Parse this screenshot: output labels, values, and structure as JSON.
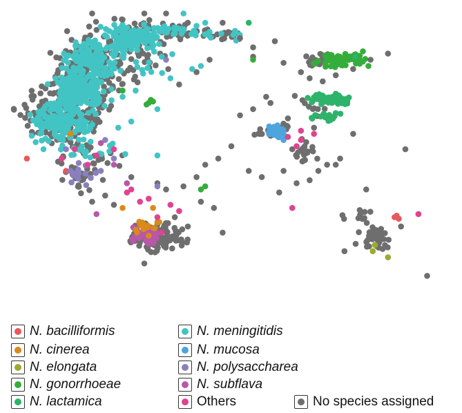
{
  "chart_data": {
    "type": "scatter",
    "title": "",
    "xlabel": "",
    "ylabel": "",
    "grid": false,
    "legend_placement": "bottom",
    "x_range": [
      0,
      100
    ],
    "y_range": [
      0,
      100
    ],
    "colors": {
      "N. bacilliformis": "#e8585c",
      "N. cinerea": "#d98a1c",
      "N. elongata": "#9aab2e",
      "N. gonorrhoeae": "#35ad3b",
      "N. lactamica": "#2fb36a",
      "N. meningitidis": "#43c4c4",
      "N. mucosa": "#4ea4dc",
      "N. polysaccharea": "#8a7fc0",
      "N. subflava": "#b957a8",
      "Others": "#e04391",
      "No species assigned": "#6e6e6e"
    },
    "clusters": [
      {
        "series": "N. meningitidis",
        "cx": 27,
        "cy": 91,
        "rx": 4,
        "ry": 2.8,
        "n": 150
      },
      {
        "series": "N. meningitidis",
        "cx": 18,
        "cy": 84,
        "rx": 4.3,
        "ry": 3.8,
        "n": 170
      },
      {
        "series": "N. meningitidis",
        "cx": 15,
        "cy": 74,
        "rx": 4.2,
        "ry": 3.8,
        "n": 170
      },
      {
        "series": "N. meningitidis",
        "cx": 11,
        "cy": 64,
        "rx": 4.5,
        "ry": 4,
        "n": 170
      },
      {
        "series": "No species assigned",
        "cx": 27,
        "cy": 91,
        "rx": 6,
        "ry": 4,
        "n": 90
      },
      {
        "series": "No species assigned",
        "cx": 18,
        "cy": 84,
        "rx": 6,
        "ry": 5.5,
        "n": 110
      },
      {
        "series": "No species assigned",
        "cx": 15,
        "cy": 74,
        "rx": 6,
        "ry": 5.5,
        "n": 110
      },
      {
        "series": "No species assigned",
        "cx": 11,
        "cy": 64,
        "rx": 6.5,
        "ry": 5.5,
        "n": 120
      },
      {
        "series": "No species assigned",
        "cx": 38,
        "cy": 93,
        "rx": 4,
        "ry": 1.5,
        "n": 28
      },
      {
        "series": "N. meningitidis",
        "cx": 37,
        "cy": 93,
        "rx": 4,
        "ry": 1.6,
        "n": 24
      },
      {
        "series": "No species assigned",
        "cx": 48,
        "cy": 92,
        "rx": 4,
        "ry": 1.2,
        "n": 16
      },
      {
        "series": "N. meningitidis",
        "cx": 47,
        "cy": 92,
        "rx": 4,
        "ry": 1.2,
        "n": 10
      },
      {
        "series": "N. meningitidis",
        "cx": 31,
        "cy": 82,
        "rx": 5,
        "ry": 5,
        "n": 12
      },
      {
        "series": "No species assigned",
        "cx": 31,
        "cy": 82,
        "rx": 5,
        "ry": 5,
        "n": 12
      },
      {
        "series": "N. meningitidis",
        "cx": 17,
        "cy": 55,
        "rx": 6,
        "ry": 3,
        "n": 22
      },
      {
        "series": "No species assigned",
        "cx": 17,
        "cy": 53,
        "rx": 6,
        "ry": 3,
        "n": 22
      },
      {
        "series": "No species assigned",
        "cx": 16,
        "cy": 46,
        "rx": 3.5,
        "ry": 4,
        "n": 22
      },
      {
        "series": "N. polysaccharea",
        "cx": 16,
        "cy": 47,
        "rx": 2.5,
        "ry": 3,
        "n": 12
      },
      {
        "series": "N. gonorrhoeae",
        "cx": 75,
        "cy": 84,
        "rx": 4,
        "ry": 1.6,
        "n": 70
      },
      {
        "series": "No species assigned",
        "cx": 70.5,
        "cy": 83.5,
        "rx": 2.5,
        "ry": 1.6,
        "n": 24
      },
      {
        "series": "N. lactamica",
        "cx": 73,
        "cy": 71,
        "rx": 3.5,
        "ry": 1.4,
        "n": 55
      },
      {
        "series": "N. lactamica",
        "cx": 72,
        "cy": 66,
        "rx": 2.8,
        "ry": 1.3,
        "n": 16
      },
      {
        "series": "No species assigned",
        "cx": 69,
        "cy": 69,
        "rx": 2.5,
        "ry": 2.8,
        "n": 14
      },
      {
        "series": "N. mucosa",
        "cx": 60.5,
        "cy": 61,
        "rx": 1.4,
        "ry": 1.5,
        "n": 34
      },
      {
        "series": "No species assigned",
        "cx": 59.5,
        "cy": 61,
        "rx": 2.5,
        "ry": 1.5,
        "n": 24
      },
      {
        "series": "No species assigned",
        "cx": 67,
        "cy": 53,
        "rx": 2.5,
        "ry": 3,
        "n": 20
      },
      {
        "series": "No species assigned",
        "cx": 33,
        "cy": 27,
        "rx": 4,
        "ry": 3,
        "n": 130
      },
      {
        "series": "N. subflava",
        "cx": 30,
        "cy": 27,
        "rx": 2.2,
        "ry": 2.2,
        "n": 42
      },
      {
        "series": "N. cinerea",
        "cx": 30.5,
        "cy": 30,
        "rx": 2.2,
        "ry": 1.2,
        "n": 20
      },
      {
        "series": "No species assigned",
        "cx": 83,
        "cy": 26,
        "rx": 2.5,
        "ry": 3,
        "n": 38
      },
      {
        "series": "No species assigned",
        "cx": 80,
        "cy": 33,
        "rx": 3,
        "ry": 2,
        "n": 12
      }
    ],
    "points": [
      {
        "series": "N. bacilliformis",
        "x": [
          3,
          12,
          88,
          93
        ],
        "y": [
          52,
          48,
          33,
          34
        ]
      },
      {
        "series": "N. bacilliformis",
        "x": [
          88,
          88.5,
          87.5
        ],
        "y": [
          33.5,
          32.5,
          33
        ]
      },
      {
        "series": "N. cinerea",
        "x": [
          13,
          25,
          32,
          31
        ],
        "y": [
          60,
          36,
          36,
          27
        ]
      },
      {
        "series": "N. elongata",
        "x": [
          83,
          82.5,
          86
        ],
        "y": [
          24,
          22,
          20
        ]
      },
      {
        "series": "N. gonorrhoeae",
        "x": [
          31,
          31.5,
          30.5,
          32,
          25,
          44,
          43,
          55
        ],
        "y": [
          70,
          71,
          69.5,
          70.5,
          74,
          43,
          42,
          84
        ]
      },
      {
        "series": "N. lactamica",
        "x": [
          54,
          78.5,
          74
        ],
        "y": [
          96,
          85,
          73
        ]
      },
      {
        "series": "N. meningitidis",
        "x": [
          39,
          42,
          44,
          34,
          36,
          41,
          25,
          28,
          33,
          43,
          51,
          24,
          27,
          33,
          45
        ],
        "y": [
          99,
          95,
          96,
          85,
          78,
          81,
          72,
          74,
          68,
          82,
          93,
          62,
          64,
          53,
          93
        ]
      },
      {
        "series": "N. mucosa",
        "x": [
          59,
          62
        ],
        "y": [
          60,
          58
        ]
      },
      {
        "series": "N. polysaccharea",
        "x": [
          20,
          23,
          33,
          35,
          21,
          12,
          13
        ],
        "y": [
          48,
          52,
          43,
          84,
          58,
          55,
          48
        ]
      },
      {
        "series": "N. subflava",
        "x": [
          19,
          23,
          26,
          20
        ],
        "y": [
          34,
          50,
          44,
          57
        ]
      },
      {
        "series": "Others",
        "x": [
          11,
          14,
          17,
          26,
          29,
          31,
          27,
          33,
          19,
          36,
          23,
          63,
          65,
          66,
          66,
          93,
          64,
          34,
          38,
          69
        ],
        "y": [
          52,
          55,
          50,
          41,
          38,
          39,
          42,
          33,
          53,
          37,
          55,
          59,
          56,
          61,
          58,
          34,
          36,
          28,
          35,
          60
        ]
      },
      {
        "series": "No species assigned",
        "x": [
          18,
          25,
          30,
          35,
          40,
          48,
          52,
          55,
          60,
          45,
          42,
          38,
          55,
          62,
          66,
          68,
          71,
          74,
          78,
          82,
          86,
          90,
          89,
          78,
          75,
          72,
          70,
          64,
          68,
          59,
          55,
          52,
          50,
          47,
          44,
          42,
          39,
          35,
          37,
          40,
          43,
          46,
          33,
          27,
          21,
          18,
          23,
          30,
          57,
          61,
          65,
          48,
          54,
          63,
          74,
          81,
          76,
          69,
          58,
          62,
          95
        ],
        "y": [
          99,
          97,
          99,
          99,
          96,
          96,
          91,
          88,
          90,
          84,
          80,
          76,
          85,
          83,
          80,
          78,
          77,
          79,
          81,
          84,
          86,
          55,
          30,
          60,
          52,
          50,
          48,
          55,
          45,
          70,
          68,
          66,
          56,
          52,
          50,
          46,
          43,
          42,
          33,
          30,
          38,
          36,
          44,
          46,
          40,
          38,
          37,
          18,
          46,
          41,
          44,
          28,
          48,
          65,
          50,
          42,
          22,
          62,
          72,
          48,
          14
        ]
      }
    ]
  },
  "legend": [
    {
      "label": "N. bacilliformis",
      "color": "#e8585c",
      "italic": true
    },
    {
      "label": "N. cinerea",
      "color": "#d98a1c",
      "italic": true
    },
    {
      "label": "N. elongata",
      "color": "#9aab2e",
      "italic": true
    },
    {
      "label": "N. gonorrhoeae",
      "color": "#35ad3b",
      "italic": true
    },
    {
      "label": "N. lactamica",
      "color": "#2fb36a",
      "italic": true
    },
    {
      "label": "N. meningitidis",
      "color": "#43c4c4",
      "italic": true
    },
    {
      "label": "N. mucosa",
      "color": "#4ea4dc",
      "italic": true
    },
    {
      "label": "N. polysaccharea",
      "color": "#8a7fc0",
      "italic": true
    },
    {
      "label": "N. subflava",
      "color": "#b957a8",
      "italic": true
    },
    {
      "label": "Others",
      "color": "#e04391",
      "italic": false
    },
    {
      "label": "No species assigned",
      "color": "#6e6e6e",
      "italic": false
    }
  ]
}
